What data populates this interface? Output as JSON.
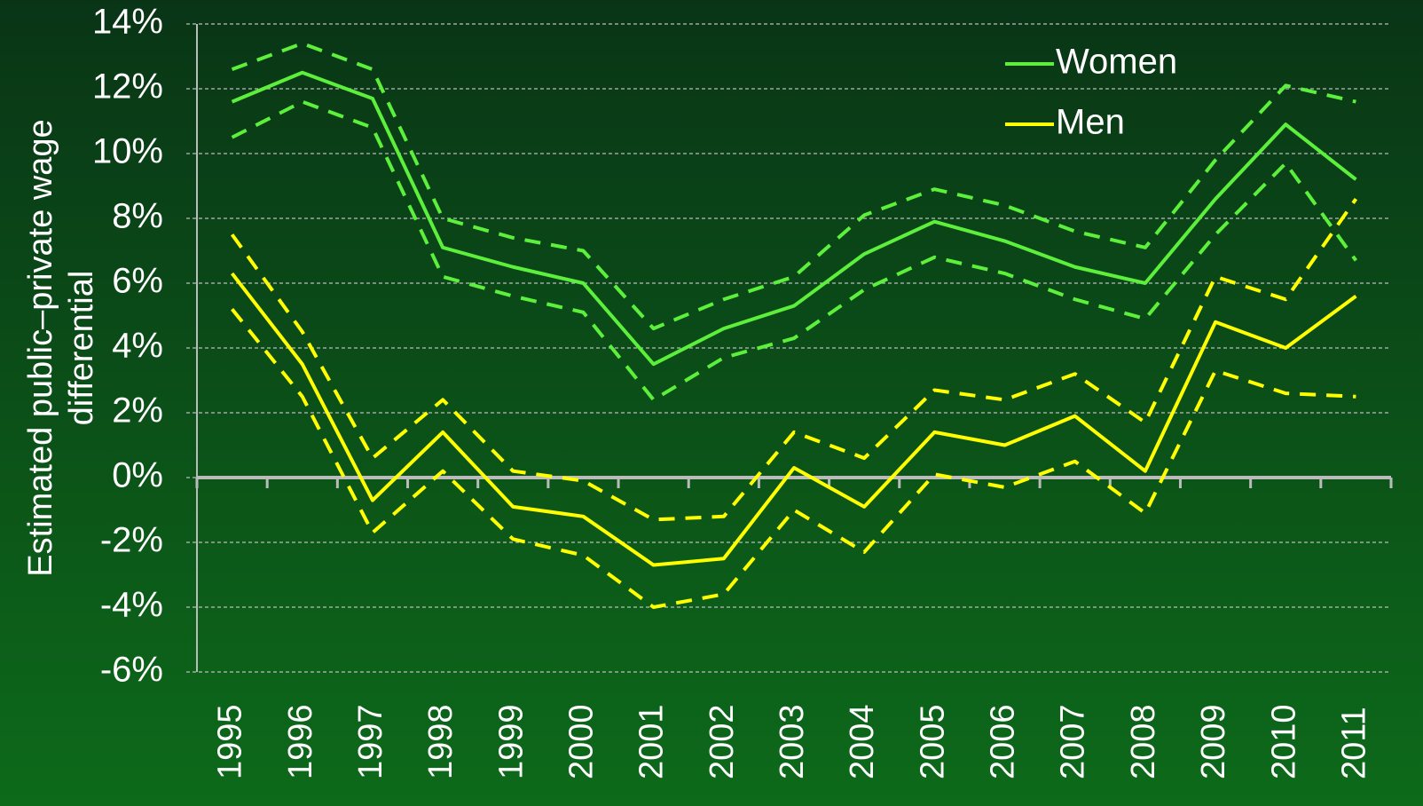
{
  "chart_data": {
    "type": "line",
    "y_label": [
      "Estimated public–private wage",
      "differential"
    ],
    "categories": [
      "1995",
      "1996",
      "1997",
      "1998",
      "1999",
      "2000",
      "2001",
      "2002",
      "2003",
      "2004",
      "2005",
      "2006",
      "2007",
      "2008",
      "2009",
      "2010",
      "2011"
    ],
    "series": [
      {
        "name": "Women",
        "color": "#5cf03c",
        "values": [
          11.6,
          12.5,
          11.7,
          7.1,
          6.5,
          6.0,
          3.5,
          4.6,
          5.3,
          6.9,
          7.9,
          7.3,
          6.5,
          6.0,
          8.6,
          10.9,
          9.2
        ],
        "upper": [
          12.6,
          13.4,
          12.6,
          8.0,
          7.4,
          7.0,
          4.6,
          5.5,
          6.2,
          8.1,
          8.9,
          8.4,
          7.6,
          7.1,
          9.8,
          12.1,
          11.6
        ],
        "lower": [
          10.5,
          11.6,
          10.8,
          6.2,
          5.6,
          5.1,
          2.4,
          3.7,
          4.3,
          5.8,
          6.8,
          6.3,
          5.5,
          4.9,
          7.5,
          9.7,
          6.7
        ]
      },
      {
        "name": "Men",
        "color": "#ffff00",
        "values": [
          6.3,
          3.5,
          -0.7,
          1.4,
          -0.9,
          -1.2,
          -2.7,
          -2.5,
          0.3,
          -0.9,
          1.4,
          1.0,
          1.9,
          0.2,
          4.8,
          4.0,
          5.6
        ],
        "upper": [
          7.5,
          4.5,
          0.6,
          2.4,
          0.2,
          -0.1,
          -1.3,
          -1.2,
          1.4,
          0.6,
          2.7,
          2.4,
          3.2,
          1.7,
          6.2,
          5.5,
          8.6
        ],
        "lower": [
          5.2,
          2.5,
          -1.7,
          0.2,
          -1.9,
          -2.4,
          -4.0,
          -3.6,
          -1.0,
          -2.3,
          0.1,
          -0.3,
          0.5,
          -1.1,
          3.3,
          2.6,
          2.5
        ]
      }
    ],
    "ylim": [
      -6,
      14
    ],
    "yticks": [
      {
        "value": -6,
        "label": "-6%"
      },
      {
        "value": -4,
        "label": "-4%"
      },
      {
        "value": -2,
        "label": "-2%"
      },
      {
        "value": 0,
        "label": "0%"
      },
      {
        "value": 2,
        "label": "2%"
      },
      {
        "value": 4,
        "label": "4%"
      },
      {
        "value": 6,
        "label": "6%"
      },
      {
        "value": 8,
        "label": "8%"
      },
      {
        "value": 10,
        "label": "10%"
      },
      {
        "value": 12,
        "label": "12%"
      },
      {
        "value": 14,
        "label": "14%"
      }
    ],
    "grid": true,
    "legend": "top-right"
  }
}
